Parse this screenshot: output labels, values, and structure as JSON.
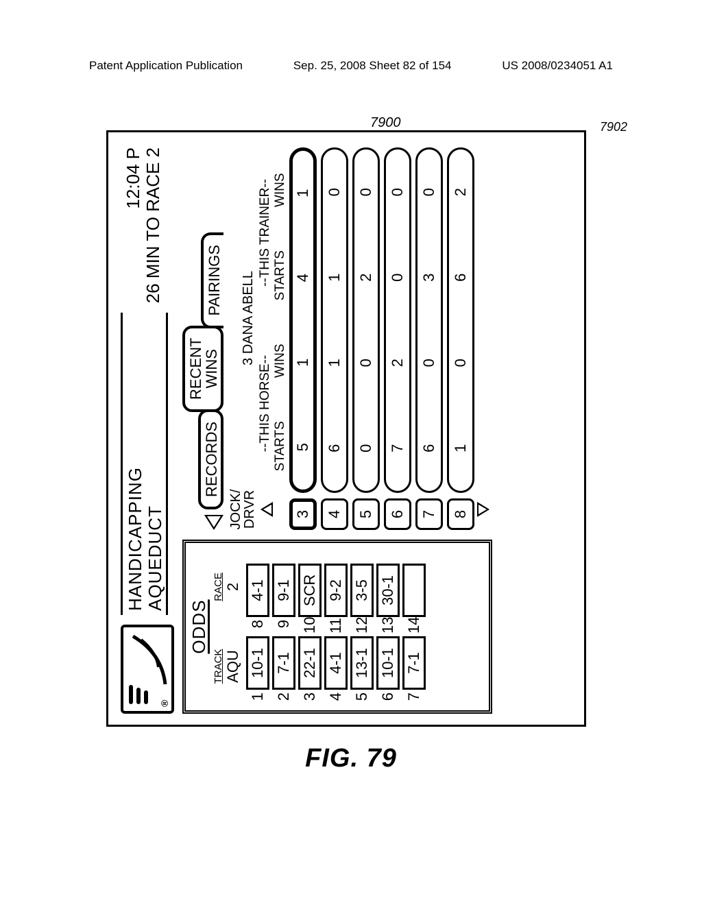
{
  "page_header": {
    "left": "Patent Application Publication",
    "mid": "Sep. 25, 2008  Sheet 82 of 154",
    "right": "US 2008/0234051 A1"
  },
  "figure_id": "7900",
  "device": {
    "title_line1": "HANDICAPPING",
    "title_line2": "AQUEDUCT",
    "clock": "12:04 P",
    "countdown": "26 MIN TO RACE 2",
    "reg_mark": "®"
  },
  "odds": {
    "title": "ODDS",
    "track_label": "TRACK",
    "track_value": "AQU",
    "race_label": "RACE",
    "race_value": "2",
    "rows": [
      {
        "l_num": "1",
        "l_val": "10-1",
        "r_num": "8",
        "r_val": "4-1"
      },
      {
        "l_num": "2",
        "l_val": "7-1",
        "r_num": "9",
        "r_val": "9-1"
      },
      {
        "l_num": "3",
        "l_val": "22-1",
        "r_num": "10",
        "r_val": "SCR"
      },
      {
        "l_num": "4",
        "l_val": "4-1",
        "r_num": "11",
        "r_val": "9-2"
      },
      {
        "l_num": "5",
        "l_val": "13-1",
        "r_num": "12",
        "r_val": "3-5"
      },
      {
        "l_num": "6",
        "l_val": "10-1",
        "r_num": "13",
        "r_val": "30-1"
      },
      {
        "l_num": "7",
        "l_val": "7-1",
        "r_num": "14",
        "r_val": ""
      }
    ]
  },
  "tabs": {
    "records": "RECORDS",
    "recent_wins_l1": "RECENT",
    "recent_wins_l2": "WINS",
    "pairings": "PAIRINGS",
    "pairings_ref": "7902"
  },
  "detail": {
    "jock_l1": "JOCK/",
    "jock_l2": "DRVR",
    "horse_name": "3 DANA ABELL",
    "grp1": "--THIS HORSE--",
    "grp2": "--THIS TRAINER--",
    "col_starts": "STARTS",
    "col_wins": "WINS",
    "rows": [
      {
        "idx": "3",
        "a": "5",
        "b": "1",
        "c": "4",
        "d": "1",
        "sel": true
      },
      {
        "idx": "4",
        "a": "6",
        "b": "1",
        "c": "1",
        "d": "0",
        "sel": false
      },
      {
        "idx": "5",
        "a": "0",
        "b": "0",
        "c": "2",
        "d": "0",
        "sel": false
      },
      {
        "idx": "6",
        "a": "7",
        "b": "2",
        "c": "0",
        "d": "0",
        "sel": false
      },
      {
        "idx": "7",
        "a": "6",
        "b": "0",
        "c": "3",
        "d": "0",
        "sel": false
      },
      {
        "idx": "8",
        "a": "1",
        "b": "0",
        "c": "6",
        "d": "2",
        "sel": false
      }
    ]
  },
  "figure_label": "FIG. 79"
}
